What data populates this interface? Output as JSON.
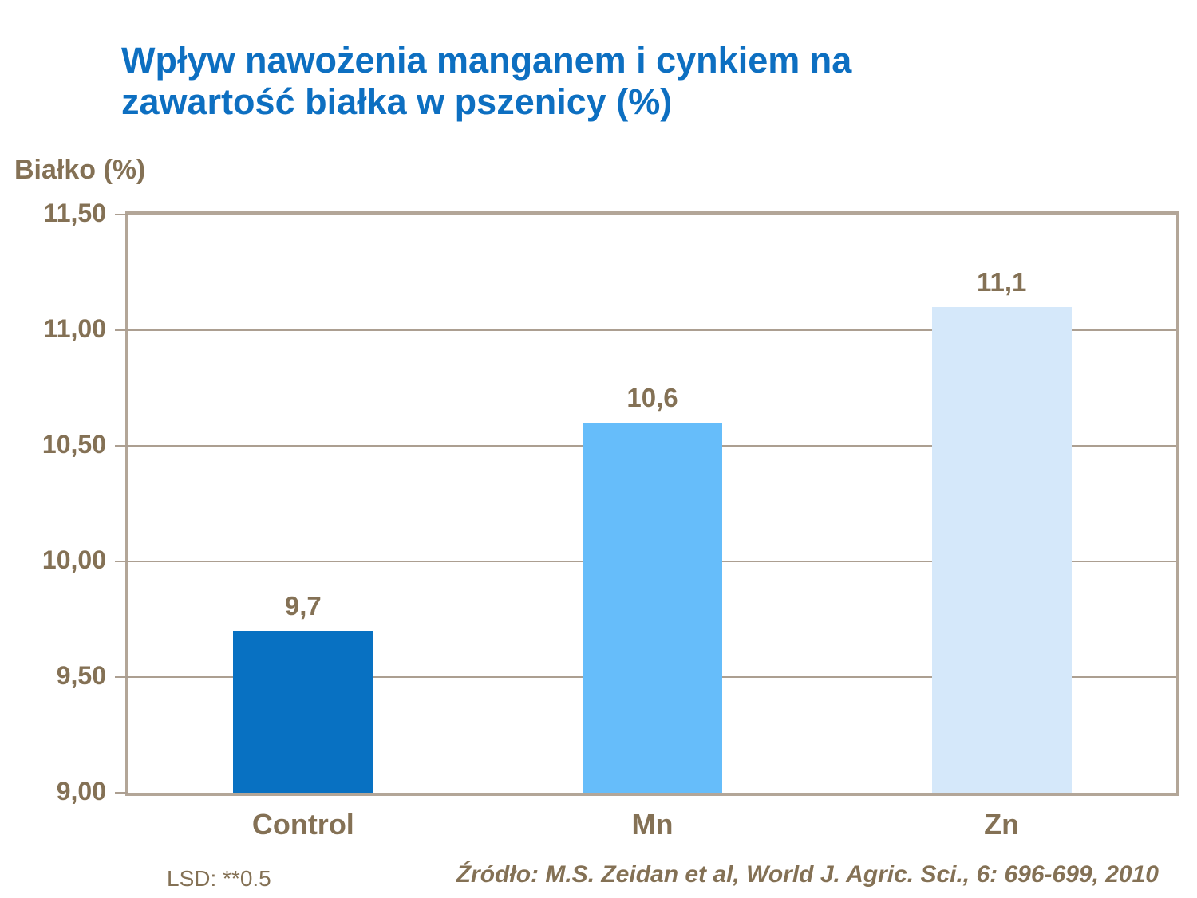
{
  "title": {
    "line1": "Wpływ nawożenia manganem i cynkiem na",
    "line2": "zawartość białka w pszenicy (%)"
  },
  "footer": {
    "lsd": "LSD: **0.5",
    "source": "Źródło: M.S. Zeidan et al, World J. Agric. Sci., 6: 696-699, 2010"
  },
  "colors": {
    "title_blue": "#0d6fc1",
    "axis_text_brown": "#847155",
    "frame_tan": "#b3a698",
    "gridline_tan": "#ac9f91",
    "background": "#ffffff"
  },
  "chart_data": {
    "type": "bar",
    "title": "Wpływ nawożenia manganem i cynkiem na zawartość białka w pszenicy (%)",
    "ylabel": "Białko (%)",
    "xlabel": "",
    "categories": [
      "Control",
      "Mn",
      "Zn"
    ],
    "values": [
      9.7,
      10.6,
      11.1
    ],
    "value_labels": [
      "9,7",
      "10,6",
      "11,1"
    ],
    "bar_colors": [
      "#0871c2",
      "#66bdfa",
      "#d5e8fa"
    ],
    "ylim": [
      9.0,
      11.5
    ],
    "ytick_step": 0.5,
    "ytick_labels_top_to_bottom": [
      "11,50",
      "11,00",
      "10,50",
      "10,00",
      "9,50",
      "9,00"
    ],
    "grid": true,
    "legend": "none",
    "annotations": [
      "LSD: **0.5",
      "Źródło: M.S. Zeidan et al, World J. Agric. Sci., 6: 696-699, 2010"
    ]
  }
}
